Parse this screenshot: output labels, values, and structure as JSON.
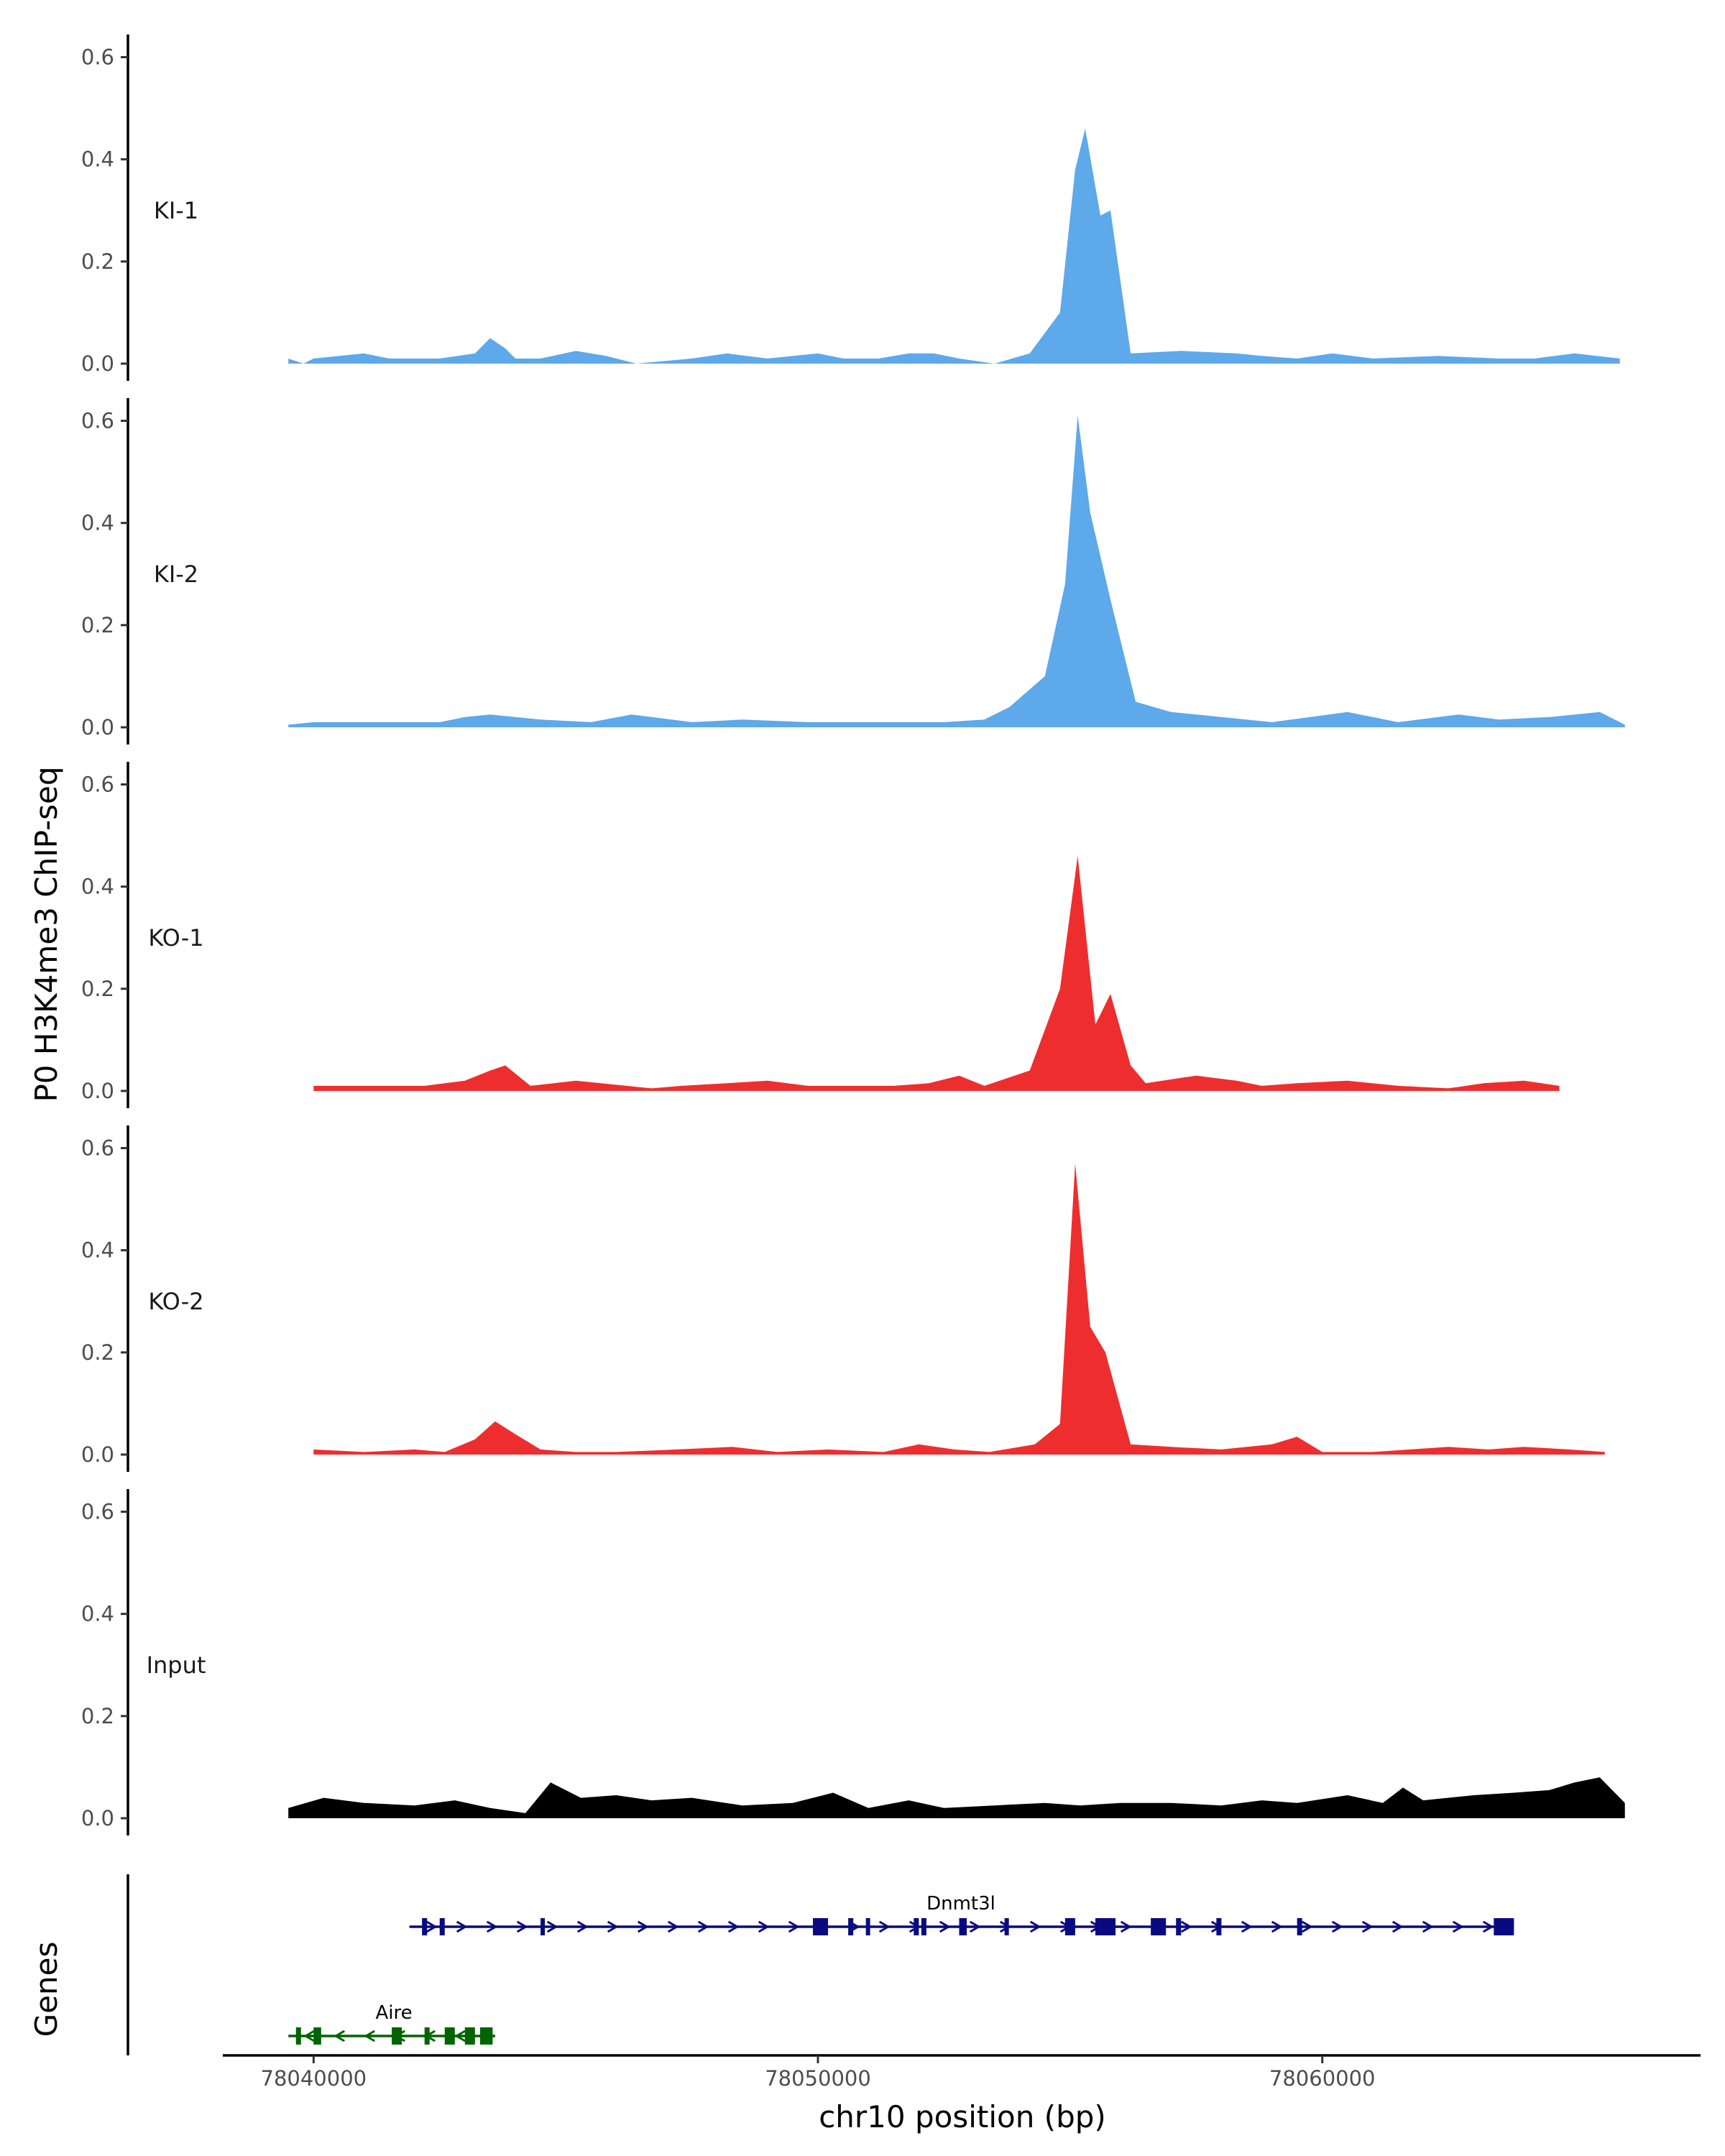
{
  "chart_data": {
    "type": "area",
    "ylabel": "P0 H3K4me3 ChIP-seq",
    "xlabel": "chr10 position (bp)",
    "xlim": [
      78038200,
      78067500
    ],
    "ylim": [
      0,
      0.65
    ],
    "y_ticks": [
      0.0,
      0.2,
      0.4,
      0.6
    ],
    "y_tick_labels": [
      "0.0",
      "0.2",
      "0.4",
      "0.6"
    ],
    "x_ticks": [
      78040000,
      78050000,
      78060000
    ],
    "x_tick_labels": [
      "78040000",
      "78050000",
      "78060000"
    ],
    "grid": false,
    "genes_label": "Genes",
    "tracks": [
      {
        "name": "KI-1",
        "color": "#5DA9E9",
        "x": [
          78039500,
          78039800,
          78040000,
          78041000,
          78041500,
          78042000,
          78042500,
          78043200,
          78043500,
          78043800,
          78044000,
          78044500,
          78045200,
          78045800,
          78046400,
          78047500,
          78048200,
          78049000,
          78050000,
          78050500,
          78051200,
          78051800,
          78052300,
          78052800,
          78053500,
          78054200,
          78054800,
          78055100,
          78055300,
          78055600,
          78055800,
          78056200,
          78057200,
          78058300,
          78058800,
          78059500,
          78060200,
          78061000,
          78062300,
          78063500,
          78064200,
          78065000,
          78065900
        ],
        "values": [
          0.01,
          0.0,
          0.01,
          0.02,
          0.01,
          0.01,
          0.01,
          0.02,
          0.05,
          0.03,
          0.01,
          0.01,
          0.025,
          0.015,
          0.0,
          0.01,
          0.02,
          0.01,
          0.02,
          0.01,
          0.01,
          0.02,
          0.02,
          0.01,
          0.0,
          0.02,
          0.1,
          0.38,
          0.46,
          0.29,
          0.3,
          0.02,
          0.025,
          0.02,
          0.015,
          0.01,
          0.02,
          0.01,
          0.015,
          0.01,
          0.01,
          0.02,
          0.01
        ]
      },
      {
        "name": "KI-2",
        "color": "#5DA9E9",
        "x": [
          78039500,
          78040000,
          78041000,
          78042500,
          78043000,
          78043500,
          78044500,
          78045500,
          78046300,
          78047500,
          78048500,
          78049800,
          78050500,
          78051500,
          78052500,
          78053300,
          78053800,
          78054500,
          78054900,
          78055150,
          78055400,
          78055800,
          78056300,
          78057000,
          78058000,
          78059000,
          78060500,
          78061500,
          78062700,
          78063500,
          78064500,
          78065500,
          78066000
        ],
        "values": [
          0.005,
          0.01,
          0.01,
          0.01,
          0.02,
          0.025,
          0.015,
          0.01,
          0.025,
          0.01,
          0.015,
          0.01,
          0.01,
          0.01,
          0.01,
          0.015,
          0.04,
          0.1,
          0.28,
          0.61,
          0.42,
          0.25,
          0.05,
          0.03,
          0.02,
          0.01,
          0.03,
          0.01,
          0.025,
          0.015,
          0.02,
          0.03,
          0.005
        ]
      },
      {
        "name": "KO-1",
        "color": "#EE2E2E",
        "x": [
          78040000,
          78041500,
          78042200,
          78043000,
          78043500,
          78043800,
          78044300,
          78045200,
          78046700,
          78047300,
          78048200,
          78049000,
          78049800,
          78050300,
          78051500,
          78052200,
          78052800,
          78053300,
          78054200,
          78054800,
          78055150,
          78055500,
          78055800,
          78056200,
          78056500,
          78057500,
          78058300,
          78058800,
          78059500,
          78060500,
          78061500,
          78062500,
          78063200,
          78064000,
          78064700
        ],
        "values": [
          0.01,
          0.01,
          0.01,
          0.02,
          0.04,
          0.05,
          0.01,
          0.02,
          0.005,
          0.01,
          0.015,
          0.02,
          0.01,
          0.01,
          0.01,
          0.015,
          0.03,
          0.01,
          0.04,
          0.2,
          0.46,
          0.13,
          0.19,
          0.05,
          0.015,
          0.03,
          0.02,
          0.01,
          0.015,
          0.02,
          0.01,
          0.005,
          0.015,
          0.02,
          0.01
        ]
      },
      {
        "name": "KO-2",
        "color": "#EE2E2E",
        "x": [
          78040000,
          78041000,
          78042000,
          78042600,
          78043200,
          78043600,
          78044000,
          78044500,
          78045200,
          78046000,
          78047200,
          78048300,
          78049200,
          78050200,
          78051300,
          78052000,
          78052700,
          78053400,
          78054300,
          78054800,
          78055100,
          78055400,
          78055700,
          78056200,
          78057000,
          78058000,
          78059000,
          78059500,
          78060000,
          78061000,
          78062500,
          78063300,
          78064000,
          78064900,
          78065600
        ],
        "values": [
          0.01,
          0.005,
          0.01,
          0.005,
          0.03,
          0.065,
          0.04,
          0.01,
          0.005,
          0.005,
          0.01,
          0.015,
          0.005,
          0.01,
          0.005,
          0.02,
          0.01,
          0.005,
          0.02,
          0.06,
          0.57,
          0.25,
          0.2,
          0.02,
          0.015,
          0.01,
          0.02,
          0.035,
          0.005,
          0.005,
          0.015,
          0.01,
          0.015,
          0.01,
          0.005
        ]
      },
      {
        "name": "Input",
        "color": "#000000",
        "x": [
          78039500,
          78040200,
          78041000,
          78042000,
          78042800,
          78043500,
          78044200,
          78044700,
          78045300,
          78046000,
          78046700,
          78047500,
          78048500,
          78049500,
          78050300,
          78051000,
          78051800,
          78052500,
          78053500,
          78054500,
          78055200,
          78056000,
          78057000,
          78058000,
          78058800,
          78059500,
          78060500,
          78061200,
          78061600,
          78062000,
          78063000,
          78063800,
          78064500,
          78065000,
          78065500,
          78066000
        ],
        "values": [
          0.02,
          0.04,
          0.03,
          0.025,
          0.035,
          0.02,
          0.01,
          0.07,
          0.04,
          0.045,
          0.035,
          0.04,
          0.025,
          0.03,
          0.05,
          0.02,
          0.035,
          0.02,
          0.025,
          0.03,
          0.025,
          0.03,
          0.03,
          0.025,
          0.035,
          0.03,
          0.045,
          0.03,
          0.06,
          0.035,
          0.045,
          0.05,
          0.055,
          0.07,
          0.08,
          0.03
        ]
      }
    ],
    "genes": [
      {
        "name": "Dnmt3l",
        "color": "#0A0A80",
        "strand": "+",
        "start": 78041900,
        "end": 78063800,
        "exons": [
          [
            78042150,
            78042250
          ],
          [
            78042500,
            78042600
          ],
          [
            78044500,
            78044580
          ],
          [
            78049900,
            78050200
          ],
          [
            78050600,
            78050700
          ],
          [
            78050950,
            78051000
          ],
          [
            78051900,
            78052000
          ],
          [
            78052050,
            78052150
          ],
          [
            78052800,
            78052950
          ],
          [
            78053700,
            78053750
          ],
          [
            78054900,
            78055100
          ],
          [
            78055500,
            78055900
          ],
          [
            78056600,
            78056900
          ],
          [
            78057100,
            78057200
          ],
          [
            78057900,
            78058000
          ],
          [
            78059500,
            78059600
          ],
          [
            78063400,
            78063800
          ]
        ]
      },
      {
        "name": "Aire",
        "color": "#006400",
        "strand": "-",
        "start": 78039500,
        "end": 78043600,
        "exons": [
          [
            78039650,
            78039750
          ],
          [
            78040000,
            78040150
          ],
          [
            78041550,
            78041750
          ],
          [
            78042200,
            78042300
          ],
          [
            78042600,
            78042800
          ],
          [
            78043000,
            78043200
          ],
          [
            78043300,
            78043550
          ]
        ]
      }
    ]
  }
}
